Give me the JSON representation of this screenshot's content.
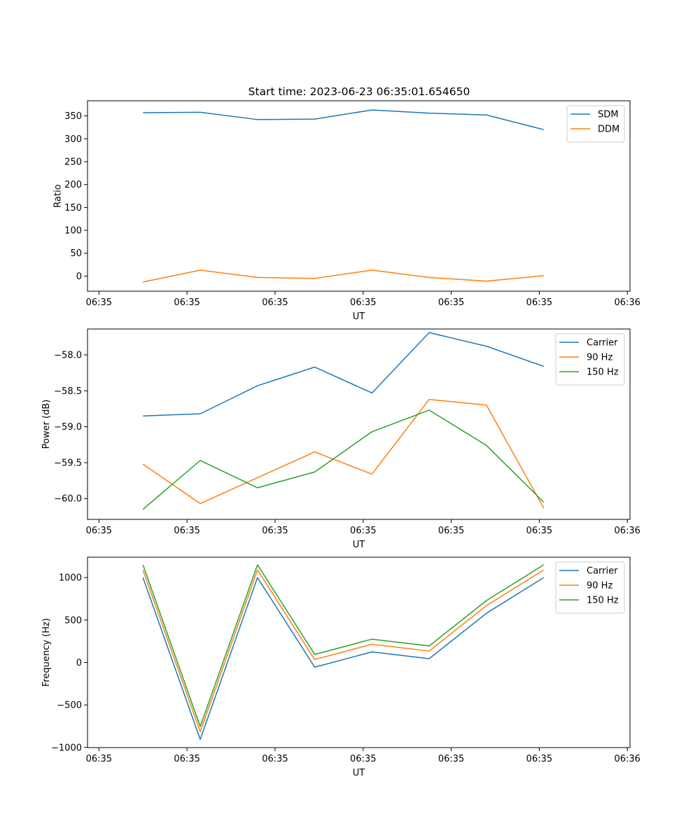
{
  "figure": {
    "title": "Start time: 2023-06-23 06:35:01.654650"
  },
  "chart_data": [
    {
      "type": "line",
      "xlabel": "UT",
      "ylabel": "Ratio",
      "x_tick_labels": [
        "06:35",
        "06:35",
        "06:35",
        "06:35",
        "06:35",
        "06:35",
        "06:36"
      ],
      "x_tick_values": [
        0,
        1,
        2,
        3,
        4,
        5,
        6
      ],
      "xlim": [
        -0.13,
        6.03
      ],
      "x": [
        0.5,
        1.15,
        1.8,
        2.45,
        3.1,
        3.75,
        4.4,
        5.05
      ],
      "yticks": [
        0,
        50,
        100,
        150,
        200,
        250,
        300,
        350
      ],
      "ylim": [
        -33,
        383
      ],
      "legend_position": "upper right",
      "series": [
        {
          "name": "SDM",
          "color": "#1f77b4",
          "values": [
            357,
            358,
            342,
            343,
            363,
            356,
            352,
            320
          ]
        },
        {
          "name": "DDM",
          "color": "#ff7f0e",
          "values": [
            -13,
            13,
            -3,
            -5,
            13,
            -3,
            -11,
            1
          ]
        }
      ]
    },
    {
      "type": "line",
      "xlabel": "UT",
      "ylabel": "Power (dB)",
      "x_tick_labels": [
        "06:35",
        "06:35",
        "06:35",
        "06:35",
        "06:35",
        "06:35",
        "06:36"
      ],
      "x_tick_values": [
        0,
        1,
        2,
        3,
        4,
        5,
        6
      ],
      "xlim": [
        -0.13,
        6.03
      ],
      "x": [
        0.5,
        1.15,
        1.8,
        2.45,
        3.1,
        3.75,
        4.4,
        5.05
      ],
      "yticks": [
        -60.0,
        -59.5,
        -59.0,
        -58.5,
        -58.0
      ],
      "ytick_labels": [
        "−60.0",
        "−59.5",
        "−59.0",
        "−58.5",
        "−58.0"
      ],
      "ylim": [
        -60.29,
        -57.64
      ],
      "legend_position": "upper right",
      "series": [
        {
          "name": "Carrier",
          "color": "#1f77b4",
          "values": [
            -58.85,
            -58.82,
            -58.43,
            -58.17,
            -58.53,
            -57.69,
            -57.88,
            -58.16
          ]
        },
        {
          "name": "90 Hz",
          "color": "#ff7f0e",
          "values": [
            -59.52,
            -60.07,
            -59.71,
            -59.35,
            -59.66,
            -58.62,
            -58.7,
            -60.13
          ]
        },
        {
          "name": "150 Hz",
          "color": "#2ca02c",
          "values": [
            -60.15,
            -59.47,
            -59.85,
            -59.63,
            -59.07,
            -58.77,
            -59.26,
            -60.05
          ]
        }
      ]
    },
    {
      "type": "line",
      "xlabel": "UT",
      "ylabel": "Frequency (Hz)",
      "x_tick_labels": [
        "06:35",
        "06:35",
        "06:35",
        "06:35",
        "06:35",
        "06:35",
        "06:36"
      ],
      "x_tick_values": [
        0,
        1,
        2,
        3,
        4,
        5,
        6
      ],
      "xlim": [
        -0.13,
        6.03
      ],
      "x": [
        0.5,
        1.15,
        1.8,
        2.45,
        3.1,
        3.75,
        4.4,
        5.05
      ],
      "yticks": [
        -1000,
        -500,
        0,
        500,
        1000
      ],
      "ytick_labels": [
        "−1000",
        "−500",
        "0",
        "500",
        "1000"
      ],
      "ylim": [
        -1002,
        1240
      ],
      "legend_position": "upper right",
      "series": [
        {
          "name": "Carrier",
          "color": "#1f77b4",
          "values": [
            1000,
            -905,
            1000,
            -55,
            125,
            45,
            580,
            1000
          ]
        },
        {
          "name": "90 Hz",
          "color": "#ff7f0e",
          "values": [
            1090,
            -815,
            1090,
            35,
            215,
            135,
            670,
            1090
          ]
        },
        {
          "name": "150 Hz",
          "color": "#2ca02c",
          "values": [
            1150,
            -755,
            1150,
            95,
            275,
            195,
            730,
            1150
          ]
        }
      ]
    }
  ]
}
